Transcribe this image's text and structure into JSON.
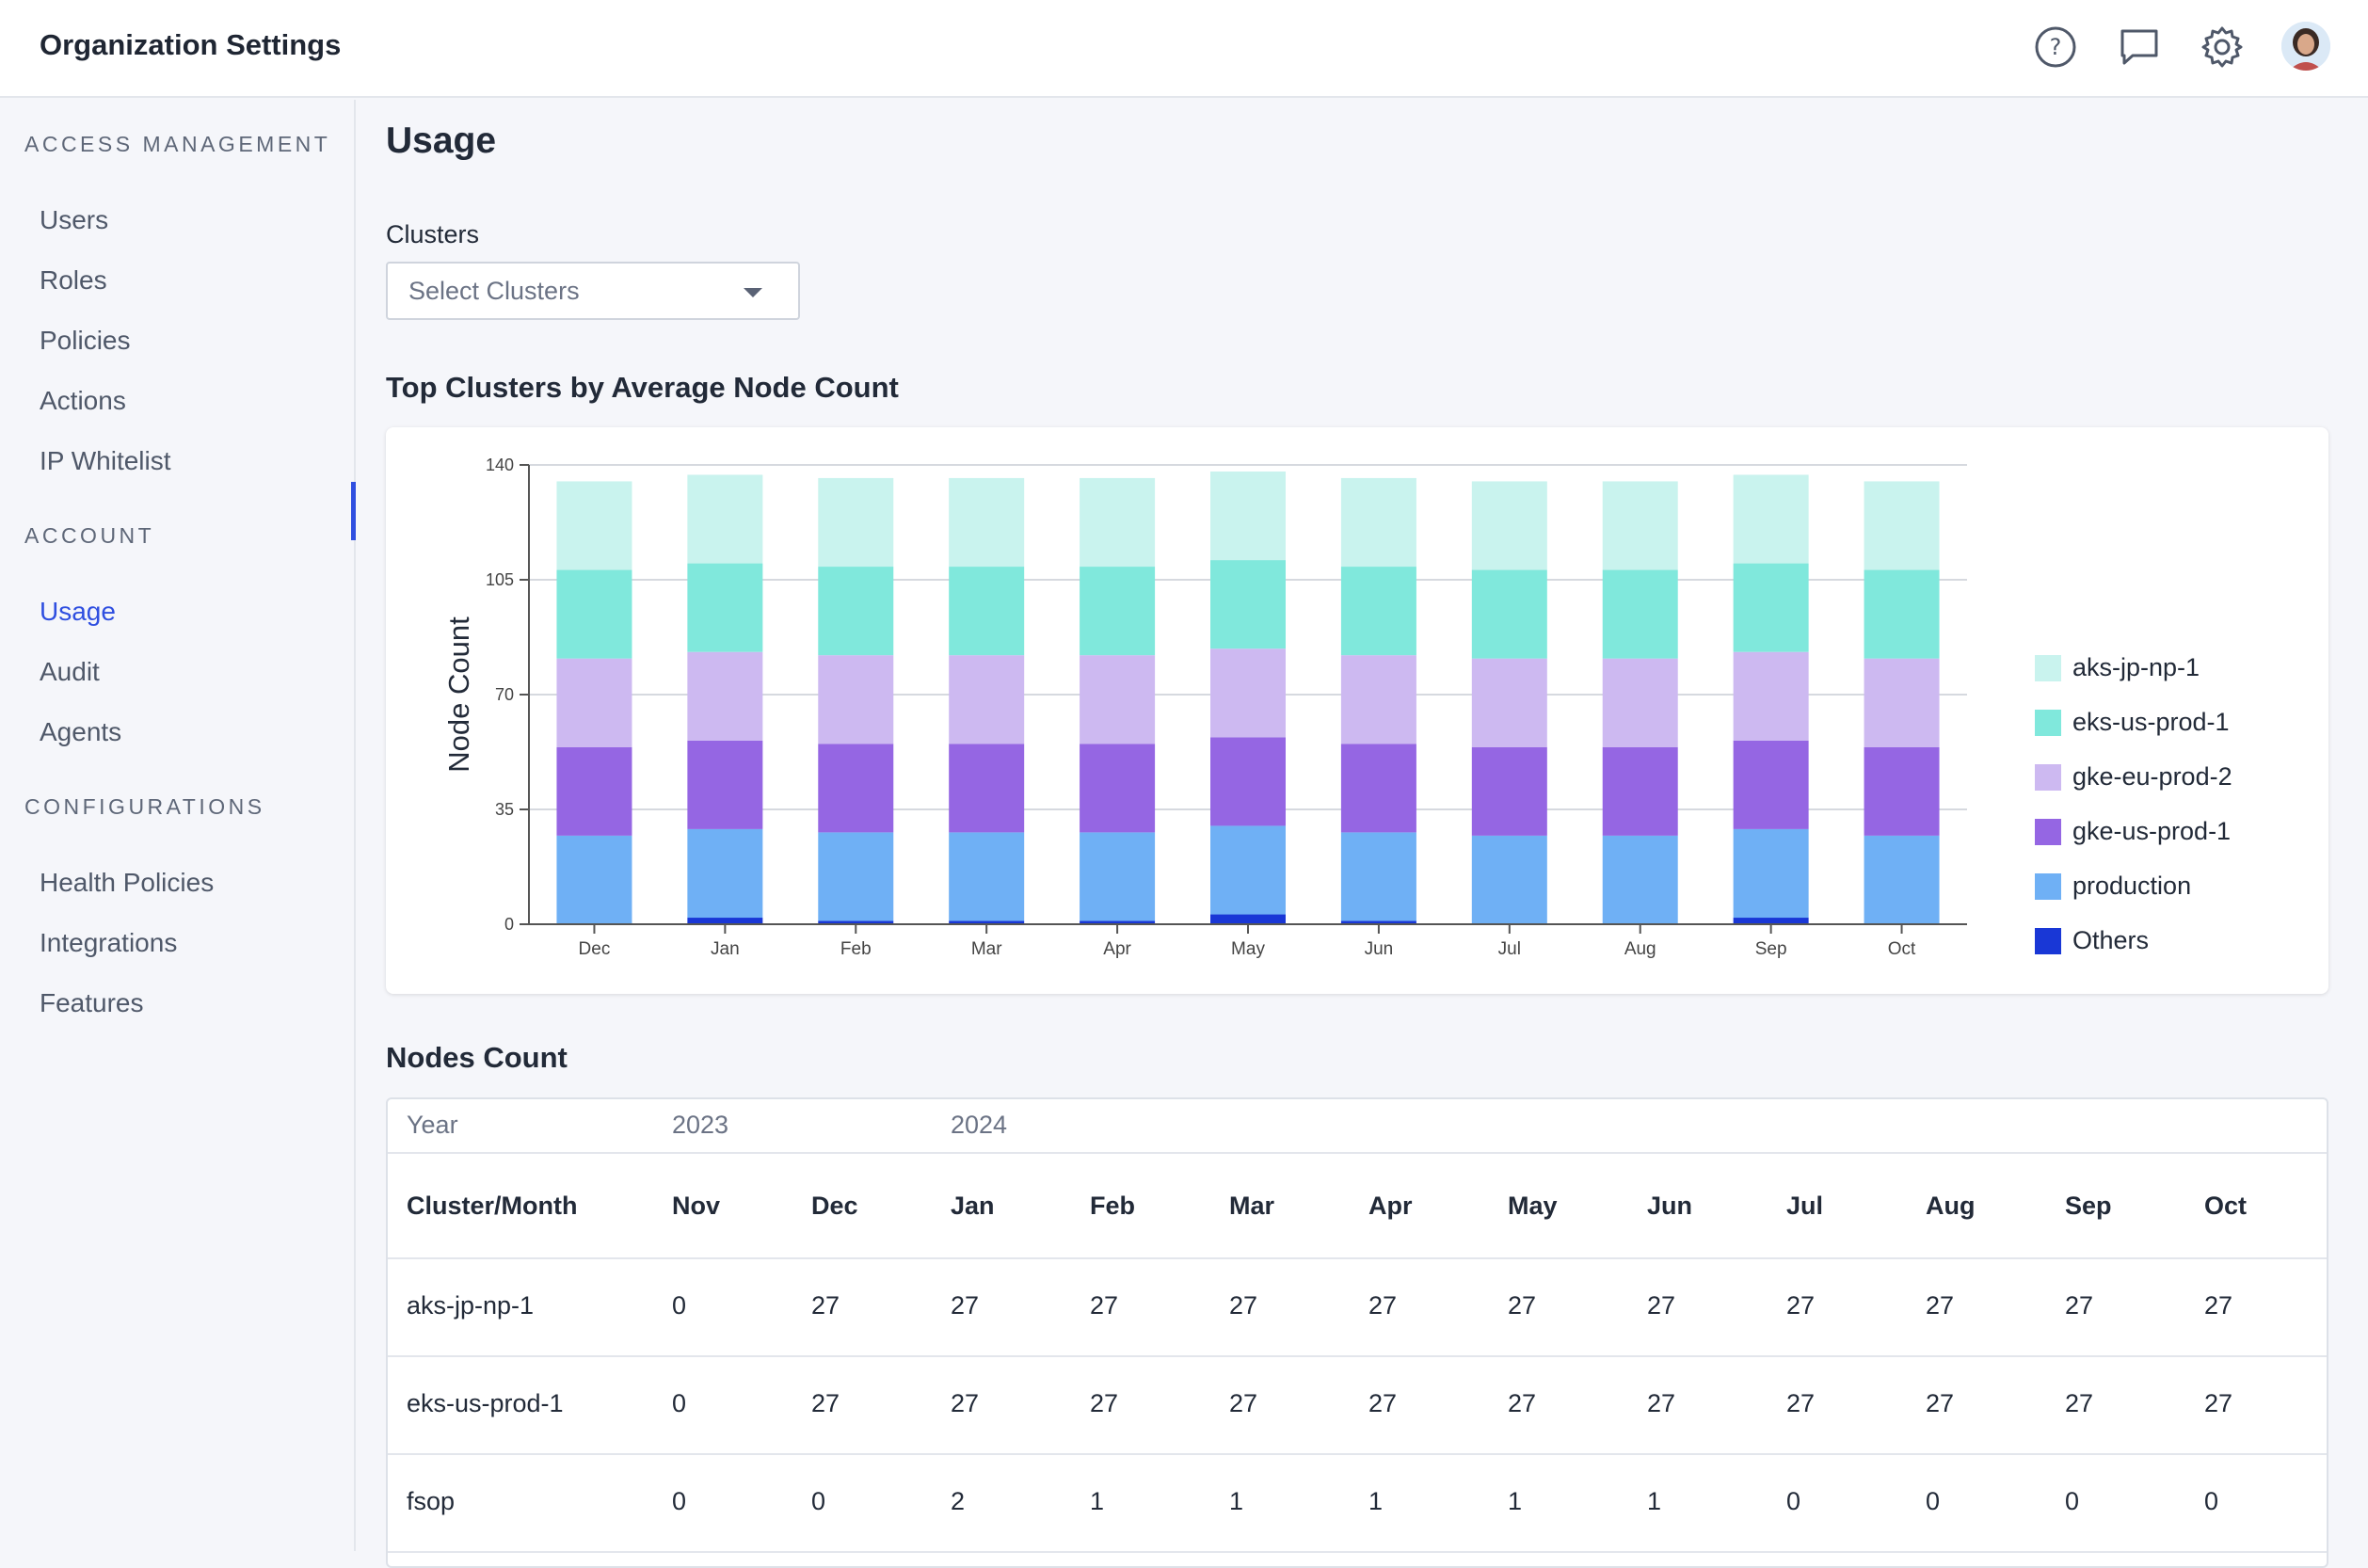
{
  "header": {
    "title": "Organization Settings",
    "icons": [
      "help-icon",
      "chat-icon",
      "gear-icon",
      "avatar"
    ]
  },
  "sidebar": {
    "sections": [
      {
        "title": "ACCESS MANAGEMENT",
        "items": [
          "Users",
          "Roles",
          "Policies",
          "Actions",
          "IP Whitelist"
        ]
      },
      {
        "title": "ACCOUNT",
        "items": [
          "Usage",
          "Audit",
          "Agents"
        ]
      },
      {
        "title": "CONFIGURATIONS",
        "items": [
          "Health Policies",
          "Integrations",
          "Features"
        ]
      }
    ],
    "active_item": "Usage"
  },
  "main": {
    "title": "Usage",
    "clusters_label": "Clusters",
    "clusters_placeholder": "Select Clusters",
    "chart_title": "Top Clusters by Average Node Count",
    "table_title": "Nodes Count"
  },
  "colors": {
    "accent": "#2f4fe0",
    "aks-jp-np-1": "#c9f3ee",
    "eks-us-prod-1": "#80e8dc",
    "gke-eu-prod-2": "#cdb9f1",
    "gke-us-prod-1": "#9566e3",
    "production": "#6fb0f5",
    "Others": "#1937d6"
  },
  "chart_data": {
    "type": "bar",
    "stacked": true,
    "title": "Top Clusters by Average Node Count",
    "xlabel": "",
    "ylabel": "Node Count",
    "ylim": [
      0,
      140
    ],
    "yticks": [
      0,
      35,
      70,
      105,
      140
    ],
    "grid": true,
    "legend_position": "right",
    "categories": [
      "Dec",
      "Jan",
      "Feb",
      "Mar",
      "Apr",
      "May",
      "Jun",
      "Jul",
      "Aug",
      "Sep",
      "Oct"
    ],
    "series": [
      {
        "name": "Others",
        "values": [
          0,
          2,
          1,
          1,
          1,
          3,
          1,
          0,
          0,
          2,
          0
        ]
      },
      {
        "name": "production",
        "values": [
          27,
          27,
          27,
          27,
          27,
          27,
          27,
          27,
          27,
          27,
          27
        ]
      },
      {
        "name": "gke-us-prod-1",
        "values": [
          27,
          27,
          27,
          27,
          27,
          27,
          27,
          27,
          27,
          27,
          27
        ]
      },
      {
        "name": "gke-eu-prod-2",
        "values": [
          27,
          27,
          27,
          27,
          27,
          27,
          27,
          27,
          27,
          27,
          27
        ]
      },
      {
        "name": "eks-us-prod-1",
        "values": [
          27,
          27,
          27,
          27,
          27,
          27,
          27,
          27,
          27,
          27,
          27
        ]
      },
      {
        "name": "aks-jp-np-1",
        "values": [
          27,
          27,
          27,
          27,
          27,
          27,
          27,
          27,
          27,
          27,
          27
        ]
      }
    ],
    "legend": [
      "aks-jp-np-1",
      "eks-us-prod-1",
      "gke-eu-prod-2",
      "gke-us-prod-1",
      "production",
      "Others"
    ]
  },
  "table": {
    "year_label": "Year",
    "years": [
      {
        "label": "2023",
        "col": 1
      },
      {
        "label": "2024",
        "col": 3
      }
    ],
    "columns": [
      "Cluster/Month",
      "Nov",
      "Dec",
      "Jan",
      "Feb",
      "Mar",
      "Apr",
      "May",
      "Jun",
      "Jul",
      "Aug",
      "Sep",
      "Oct"
    ],
    "rows": [
      [
        "aks-jp-np-1",
        "0",
        "27",
        "27",
        "27",
        "27",
        "27",
        "27",
        "27",
        "27",
        "27",
        "27",
        "27"
      ],
      [
        "eks-us-prod-1",
        "0",
        "27",
        "27",
        "27",
        "27",
        "27",
        "27",
        "27",
        "27",
        "27",
        "27",
        "27"
      ],
      [
        "fsop",
        "0",
        "0",
        "2",
        "1",
        "1",
        "1",
        "1",
        "1",
        "0",
        "0",
        "0",
        "0"
      ]
    ]
  }
}
